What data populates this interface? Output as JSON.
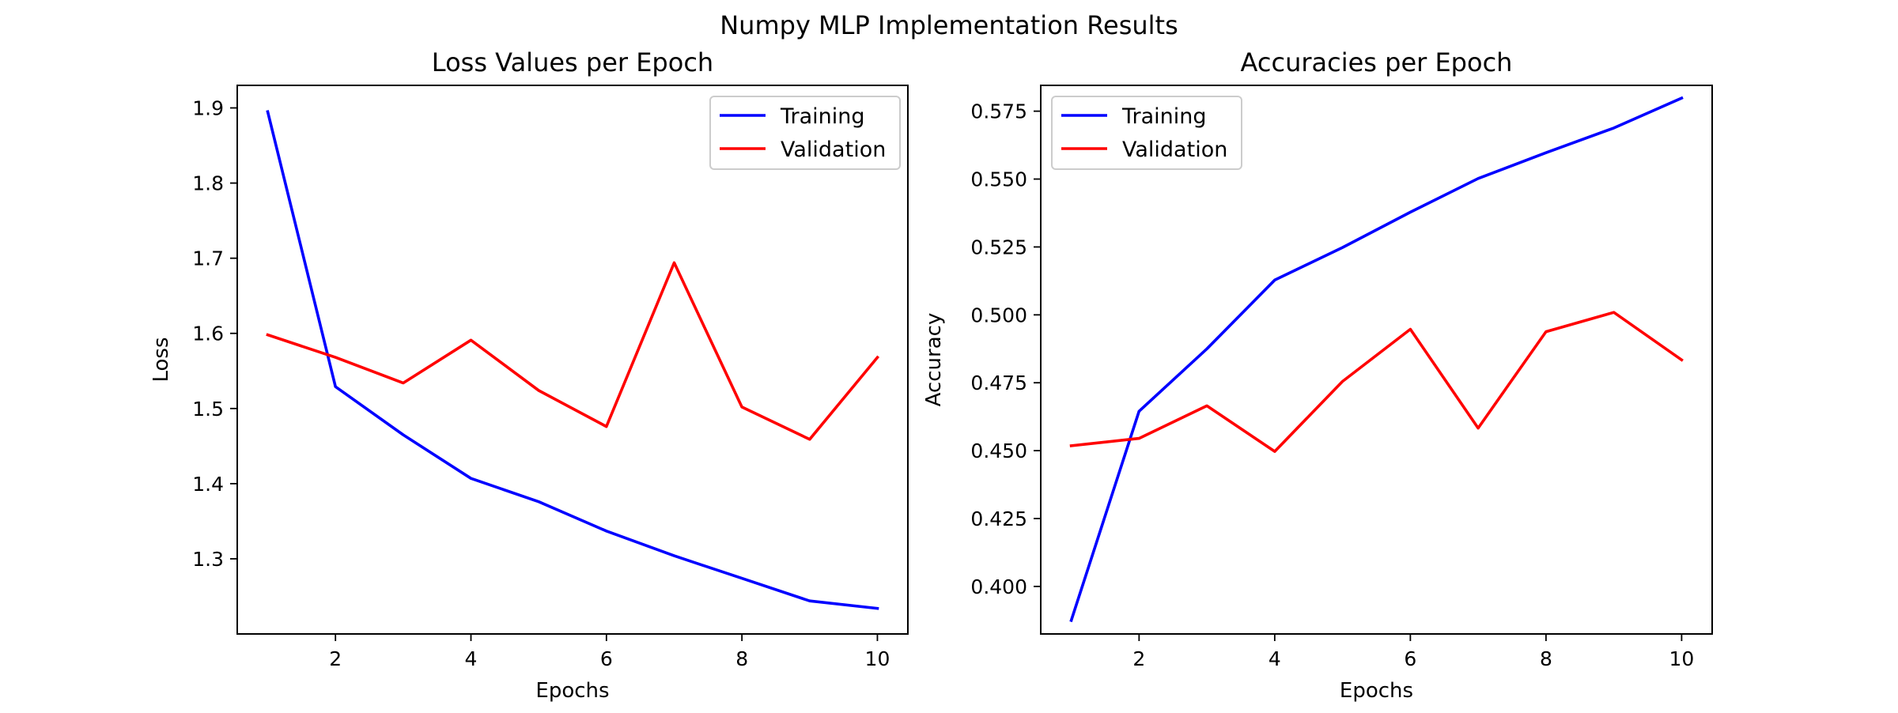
{
  "figure": {
    "title": "Numpy MLP Implementation Results"
  },
  "chart_data": [
    {
      "type": "line",
      "title": "Loss Values per Epoch",
      "xlabel": "Epochs",
      "ylabel": "Loss",
      "x": [
        1,
        2,
        3,
        4,
        5,
        6,
        7,
        8,
        9,
        10
      ],
      "xlim": [
        0.55,
        10.45
      ],
      "ylim": [
        1.2,
        1.93
      ],
      "xticks": [
        2,
        4,
        6,
        8,
        10
      ],
      "yticks": [
        1.3,
        1.4,
        1.5,
        1.6,
        1.7,
        1.8,
        1.9
      ],
      "ytick_format": 1,
      "grid": false,
      "legend": "top-right",
      "series": [
        {
          "name": "Training",
          "color": "#0000ff",
          "values": [
            1.895,
            1.529,
            1.465,
            1.407,
            1.376,
            1.337,
            1.304,
            1.274,
            1.244,
            1.234
          ]
        },
        {
          "name": "Validation",
          "color": "#ff0000",
          "values": [
            1.598,
            1.568,
            1.534,
            1.591,
            1.524,
            1.476,
            1.694,
            1.502,
            1.459,
            1.568
          ]
        }
      ]
    },
    {
      "type": "line",
      "title": "Accuracies per Epoch",
      "xlabel": "Epochs",
      "ylabel": "Accuracy",
      "x": [
        1,
        2,
        3,
        4,
        5,
        6,
        7,
        8,
        9,
        10
      ],
      "xlim": [
        0.55,
        10.45
      ],
      "ylim": [
        0.3825,
        0.5845
      ],
      "xticks": [
        2,
        4,
        6,
        8,
        10
      ],
      "yticks": [
        0.4,
        0.425,
        0.45,
        0.475,
        0.5,
        0.525,
        0.55,
        0.575
      ],
      "ytick_format": 3,
      "grid": false,
      "legend": "top-left",
      "series": [
        {
          "name": "Training",
          "color": "#0000ff",
          "values": [
            0.3875,
            0.4645,
            0.4875,
            0.5128,
            0.5248,
            0.5378,
            0.5502,
            0.5597,
            0.5688,
            0.5798
          ]
        },
        {
          "name": "Validation",
          "color": "#ff0000",
          "values": [
            0.4518,
            0.4545,
            0.4665,
            0.4497,
            0.4755,
            0.4947,
            0.4583,
            0.4938,
            0.5009,
            0.4834
          ]
        }
      ]
    }
  ]
}
